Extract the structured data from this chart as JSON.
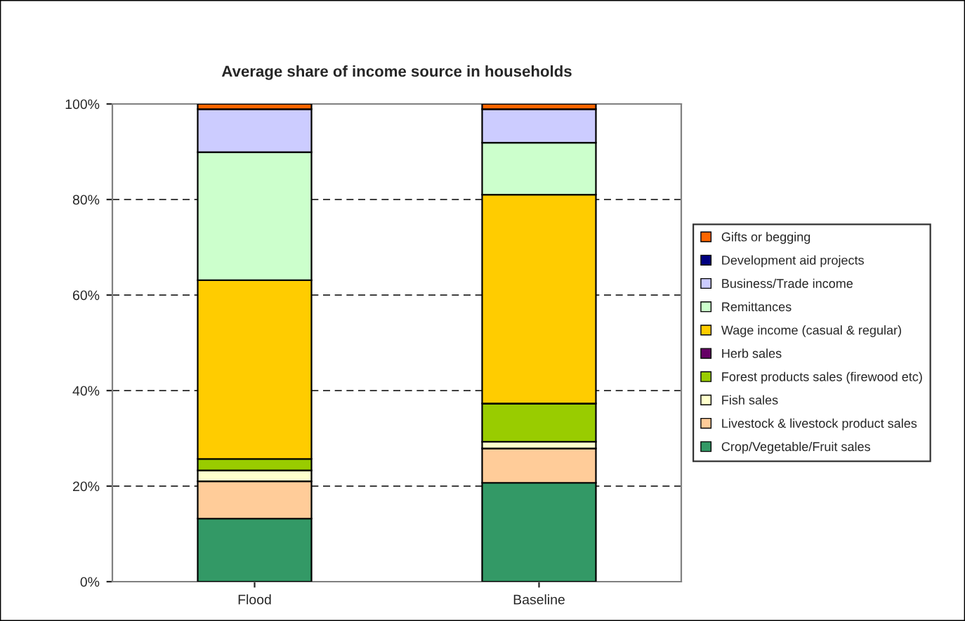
{
  "chart_data": {
    "type": "bar",
    "title": "Average share of income source in households",
    "categories": [
      "Flood",
      "Baseline"
    ],
    "stacked": true,
    "series": [
      {
        "name": "Crop/Vegetable/Fruit sales",
        "color": "#339966",
        "values": [
          13.2,
          20.7
        ]
      },
      {
        "name": "Livestock & livestock product sales",
        "color": "#ffcc99",
        "values": [
          7.8,
          7.2
        ]
      },
      {
        "name": "Fish sales",
        "color": "#ffffcc",
        "values": [
          2.3,
          1.4
        ]
      },
      {
        "name": "Forest products sales (firewood etc)",
        "color": "#99cc00",
        "values": [
          2.4,
          8.0
        ]
      },
      {
        "name": "Herb sales",
        "color": "#660066",
        "values": [
          0,
          0
        ]
      },
      {
        "name": "Wage income (casual & regular)",
        "color": "#ffcc00",
        "values": [
          37.4,
          43.7
        ]
      },
      {
        "name": "Remittances",
        "color": "#ccffcc",
        "values": [
          26.8,
          10.9
        ]
      },
      {
        "name": "Business/Trade income",
        "color": "#ccccff",
        "values": [
          9.0,
          7.0
        ]
      },
      {
        "name": "Development aid projects",
        "color": "#000080",
        "values": [
          0,
          0
        ]
      },
      {
        "name": "Gifts or begging",
        "color": "#ff6600",
        "values": [
          1.1,
          1.1
        ]
      }
    ],
    "ylim": [
      0,
      100
    ],
    "yticks": [
      {
        "value": 0,
        "label": "0%"
      },
      {
        "value": 20,
        "label": "20%"
      },
      {
        "value": 40,
        "label": "40%"
      },
      {
        "value": 60,
        "label": "60%"
      },
      {
        "value": 80,
        "label": "80%"
      },
      {
        "value": 100,
        "label": "100%"
      }
    ],
    "grid": "y",
    "legend": "right"
  }
}
